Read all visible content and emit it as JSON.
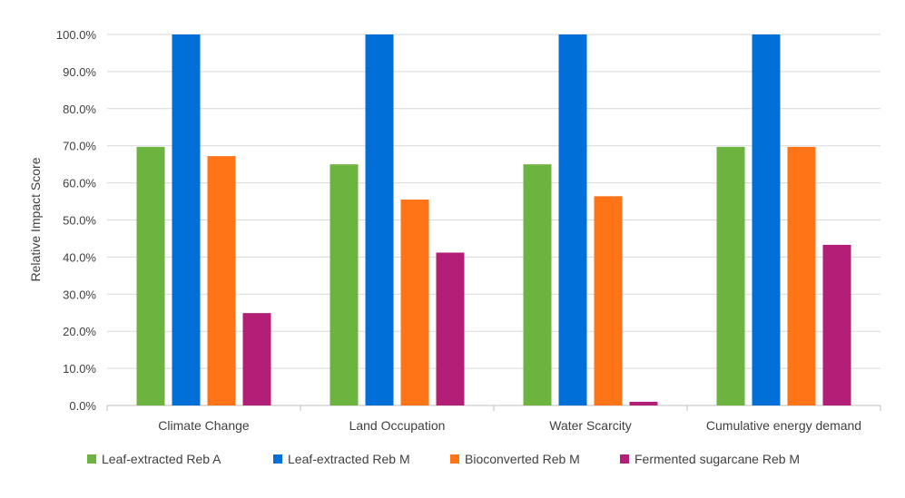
{
  "chart_data": {
    "type": "bar",
    "title": "",
    "xlabel": "",
    "ylabel": "Relative Impact Score",
    "ylim": [
      0,
      100
    ],
    "yticks": [
      "0.0%",
      "10.0%",
      "20.0%",
      "30.0%",
      "40.0%",
      "50.0%",
      "60.0%",
      "70.0%",
      "80.0%",
      "90.0%",
      "100.0%"
    ],
    "grid": true,
    "legend_position": "bottom",
    "categories": [
      "Climate Change",
      "Land Occupation",
      "Water Scarcity",
      "Cumulative energy demand"
    ],
    "series": [
      {
        "name": "Leaf-extracted Reb A",
        "color": "#6db33f",
        "values": [
          69.7,
          65.0,
          65.0,
          69.7
        ]
      },
      {
        "name": "Leaf-extracted Reb M",
        "color": "#0070d8",
        "values": [
          100,
          100,
          100,
          100
        ]
      },
      {
        "name": "Bioconverted Reb M",
        "color": "#ff7417",
        "values": [
          67.2,
          55.5,
          56.4,
          69.7
        ]
      },
      {
        "name": "Fermented sugarcane Reb M",
        "color": "#b31e76",
        "values": [
          24.9,
          41.2,
          1.0,
          43.3
        ]
      }
    ]
  }
}
